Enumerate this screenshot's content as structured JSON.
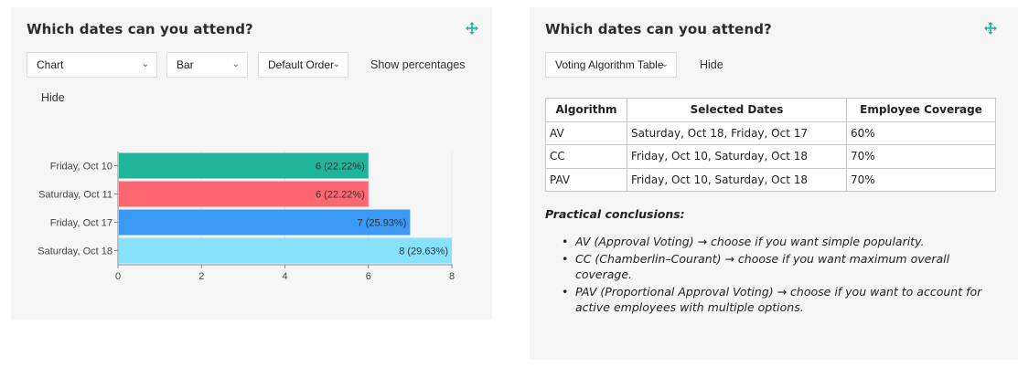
{
  "left_panel": {
    "title": "Which dates can you attend?",
    "view_select": "Chart",
    "type_select": "Bar",
    "order_select": "Default Order",
    "show_percentages": "Show percentages",
    "hide": "Hide"
  },
  "right_panel": {
    "title": "Which dates can you attend?",
    "view_select": "Voting Algorithm Table",
    "hide": "Hide",
    "table": {
      "headers": [
        "Algorithm",
        "Selected Dates",
        "Employee Coverage"
      ],
      "rows": [
        [
          "AV",
          "Saturday, Oct 18, Friday, Oct 17",
          "60%"
        ],
        [
          "CC",
          "Friday, Oct 10, Saturday, Oct 18",
          "70%"
        ],
        [
          "PAV",
          "Friday, Oct 10, Saturday, Oct 18",
          "70%"
        ]
      ]
    },
    "conclusions_title": "Practical conclusions:",
    "conclusions": [
      "AV (Approval Voting) → choose if you want simple popularity.",
      "CC (Chamberlin–Courant) → choose if you want maximum overall coverage.",
      "PAV (Proportional Approval Voting) → choose if you want to account for active employees with multiple options."
    ]
  },
  "icons": {
    "move": "move-arrows-icon",
    "chevron": "chevron-down-icon",
    "bullet": "•"
  },
  "colors": {
    "accent_teal": "#20b49b"
  },
  "chart_data": {
    "type": "bar",
    "orientation": "horizontal",
    "categories": [
      "Friday, Oct 10",
      "Saturday, Oct 11",
      "Friday, Oct 17",
      "Saturday, Oct 18"
    ],
    "values": [
      6,
      6,
      7,
      8
    ],
    "data_labels": [
      "6 (22.22%)",
      "6 (22.22%)",
      "7 (25.93%)",
      "8 (29.63%)"
    ],
    "colors": [
      "#20b49b",
      "#ff6770",
      "#3b9af5",
      "#86e1fa"
    ],
    "xlim": [
      0,
      8
    ],
    "xticks": [
      0,
      2,
      4,
      6,
      8
    ],
    "grid": true,
    "title": "",
    "xlabel": "",
    "ylabel": ""
  }
}
